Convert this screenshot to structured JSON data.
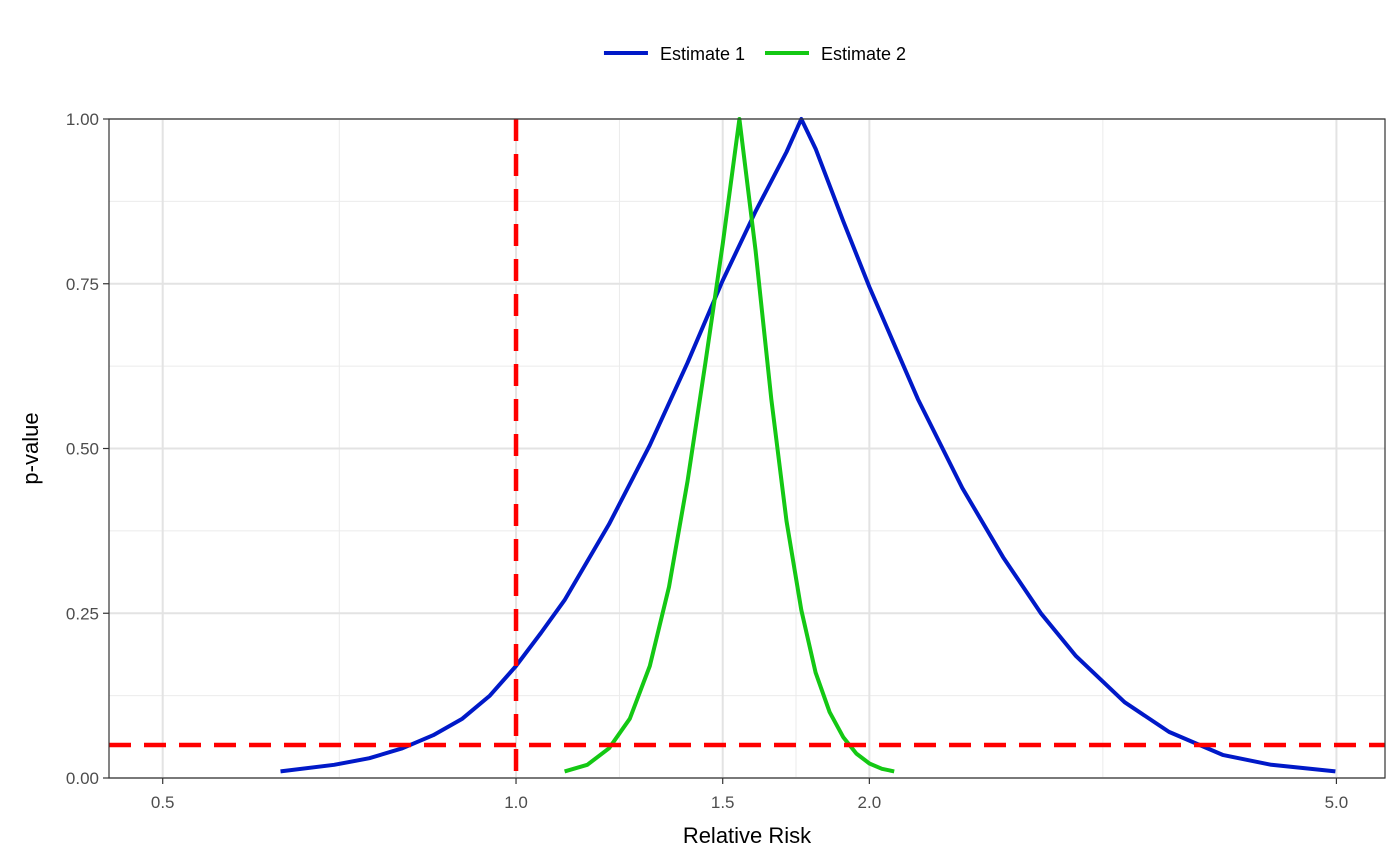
{
  "chart_data": {
    "type": "line",
    "xlabel": "Relative Risk",
    "ylabel": "p-value",
    "x_scale": "log",
    "xlim": [
      0.45,
      5.5
    ],
    "ylim": [
      0,
      1
    ],
    "x_ticks": [
      0.5,
      1.0,
      1.5,
      2.0,
      5.0
    ],
    "x_tick_labels": [
      "0.5",
      "1.0",
      "1.5",
      "2.0",
      "5.0"
    ],
    "x_minor_gridlines": [
      0.707,
      1.225,
      1.732,
      3.162
    ],
    "y_ticks": [
      0,
      0.25,
      0.5,
      0.75,
      1.0
    ],
    "y_tick_labels": [
      "0.00",
      "0.25",
      "0.50",
      "0.75",
      "1.00"
    ],
    "grid": true,
    "legend_position": "top",
    "series": [
      {
        "name": "Estimate 1",
        "color": "#0019c8",
        "x": [
          0.63,
          0.7,
          0.75,
          0.8,
          0.85,
          0.9,
          0.95,
          1.0,
          1.05,
          1.1,
          1.2,
          1.3,
          1.4,
          1.5,
          1.6,
          1.7,
          1.75,
          1.8,
          1.9,
          2.0,
          2.2,
          2.4,
          2.6,
          2.8,
          3.0,
          3.3,
          3.6,
          4.0,
          4.4,
          4.99
        ],
        "y": [
          0.01,
          0.02,
          0.03,
          0.045,
          0.065,
          0.09,
          0.125,
          0.17,
          0.22,
          0.27,
          0.385,
          0.505,
          0.63,
          0.755,
          0.86,
          0.95,
          1.0,
          0.955,
          0.845,
          0.745,
          0.575,
          0.44,
          0.335,
          0.25,
          0.185,
          0.115,
          0.07,
          0.035,
          0.02,
          0.01
        ]
      },
      {
        "name": "Estimate 2",
        "color": "#14c814",
        "x": [
          1.1,
          1.15,
          1.2,
          1.25,
          1.3,
          1.35,
          1.4,
          1.45,
          1.5,
          1.55,
          1.6,
          1.65,
          1.7,
          1.75,
          1.8,
          1.85,
          1.9,
          1.95,
          2.0,
          2.05,
          2.1
        ],
        "y": [
          0.01,
          0.02,
          0.045,
          0.09,
          0.17,
          0.29,
          0.45,
          0.63,
          0.81,
          1.0,
          0.8,
          0.575,
          0.39,
          0.255,
          0.16,
          0.1,
          0.062,
          0.037,
          0.022,
          0.014,
          0.01
        ]
      }
    ],
    "reference_lines": [
      {
        "orientation": "vertical",
        "value": 1.0,
        "color": "#ff0000",
        "style": "dashed"
      },
      {
        "orientation": "horizontal",
        "value": 0.05,
        "color": "#ff0000",
        "style": "dashed"
      }
    ]
  }
}
